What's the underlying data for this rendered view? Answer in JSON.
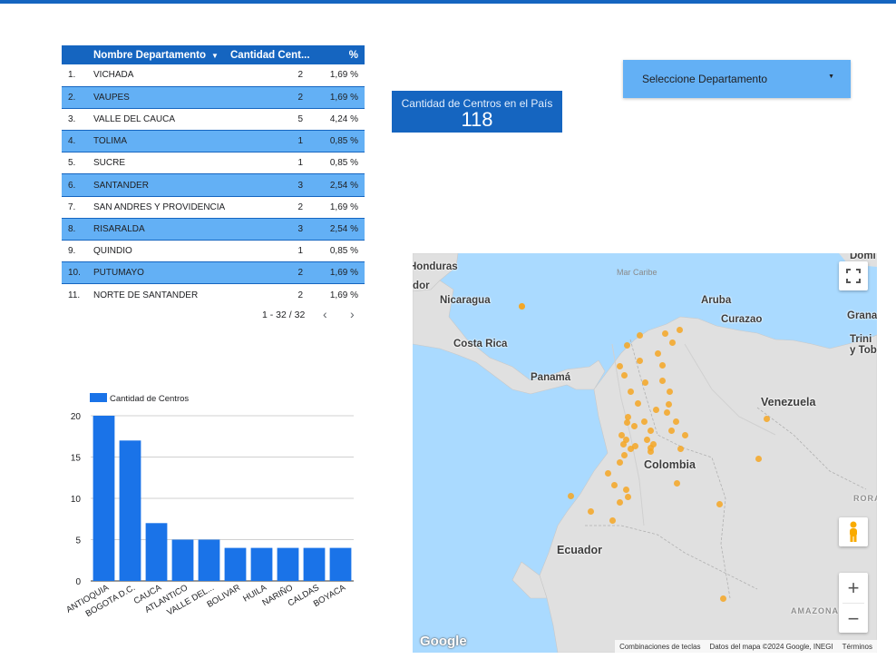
{
  "table": {
    "headers": {
      "name": "Nombre Departamento",
      "qty": "Cantidad Cent...",
      "pct": "%"
    },
    "rows": [
      {
        "idx": "1.",
        "name": "VICHADA",
        "qty": "2",
        "pct": "1,69 %"
      },
      {
        "idx": "2.",
        "name": "VAUPES",
        "qty": "2",
        "pct": "1,69 %"
      },
      {
        "idx": "3.",
        "name": "VALLE DEL CAUCA",
        "qty": "5",
        "pct": "4,24 %"
      },
      {
        "idx": "4.",
        "name": "TOLIMA",
        "qty": "1",
        "pct": "0,85 %"
      },
      {
        "idx": "5.",
        "name": "SUCRE",
        "qty": "1",
        "pct": "0,85 %"
      },
      {
        "idx": "6.",
        "name": "SANTANDER",
        "qty": "3",
        "pct": "2,54 %"
      },
      {
        "idx": "7.",
        "name": "SAN ANDRES Y PROVIDENCIA",
        "qty": "2",
        "pct": "1,69 %"
      },
      {
        "idx": "8.",
        "name": "RISARALDA",
        "qty": "3",
        "pct": "2,54 %"
      },
      {
        "idx": "9.",
        "name": "QUINDIO",
        "qty": "1",
        "pct": "0,85 %"
      },
      {
        "idx": "10.",
        "name": "PUTUMAYO",
        "qty": "2",
        "pct": "1,69 %"
      },
      {
        "idx": "11.",
        "name": "NORTE DE SANTANDER",
        "qty": "2",
        "pct": "1,69 %"
      }
    ],
    "pagination": "1 - 32 / 32"
  },
  "scorecard": {
    "label": "Cantidad de Centros en el País",
    "value": "118"
  },
  "selector": {
    "label": "Seleccione Departamento"
  },
  "chart_data": {
    "type": "bar",
    "categories": [
      "ANTIOQUIA",
      "BOGOTA D.C.",
      "CAUCA",
      "ATLANTICO",
      "VALLE DEL...",
      "BOLIVAR",
      "HUILA",
      "NARIÑO",
      "CALDAS",
      "BOYACA"
    ],
    "series": [
      {
        "name": "Cantidad de Centros",
        "values": [
          20,
          17,
          7,
          5,
          5,
          4,
          4,
          4,
          4,
          4
        ]
      }
    ],
    "yticks": [
      "0",
      "5",
      "10",
      "15",
      "20"
    ],
    "ylim": [
      0,
      20
    ],
    "grid": true,
    "legend": "top-left",
    "color": "#1a73e8"
  },
  "map": {
    "labels": {
      "honduras": "Honduras",
      "salvador": "Salvador",
      "mar_caribe": "Mar Caribe",
      "nicaragua": "Nicaragua",
      "aruba": "Aruba",
      "curazao": "Curazao",
      "granada": "Granad",
      "trinidad": "Trini y Tob",
      "dominica": "Domi",
      "costa_rica": "Costa Rica",
      "panama": "Panamá",
      "venezuela": "Venezuela",
      "colombia": "Colombia",
      "roraima": "RORA",
      "ecuador": "Ecuador",
      "amazonas": "AMAZONAS"
    },
    "logo": "Google",
    "attribution": {
      "shortcuts": "Combinaciones de teclas",
      "data": "Datos del mapa ©2024 Google, INEGI",
      "terms": "Términos"
    }
  },
  "colors": {
    "header_blue": "#1565c0",
    "alt_row_blue": "#63b0f5",
    "bar_blue": "#1a73e8",
    "pin_orange": "#f5a623"
  }
}
